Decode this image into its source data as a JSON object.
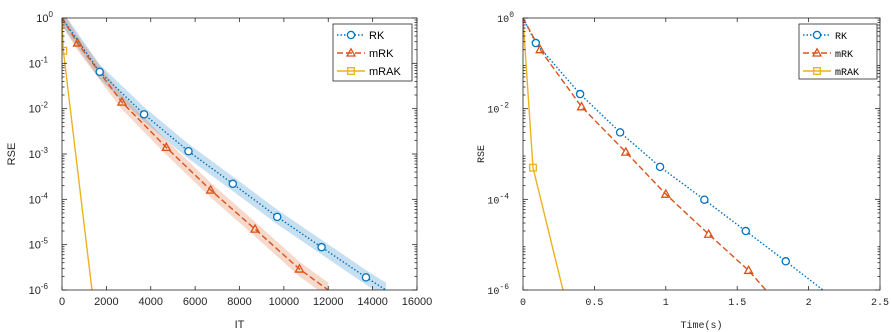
{
  "chart_data": [
    {
      "type": "line",
      "xlabel": "IT",
      "ylabel": "RSE",
      "xlim": [
        0,
        16000
      ],
      "ylim": [
        1e-06,
        1
      ],
      "yscale": "log",
      "xticks": [
        "0",
        "2000",
        "4000",
        "6000",
        "8000",
        "10000",
        "12000",
        "14000",
        "16000"
      ],
      "ytick_exponents": [
        "0",
        "-1",
        "-2",
        "-3",
        "-4",
        "-5",
        "-6"
      ],
      "ytick_base": "10",
      "legend_position": "top-right",
      "series": [
        {
          "name": "RK",
          "color": "#0072BD",
          "linestyle": "dotted",
          "marker": "circle",
          "band": true,
          "x": [
            0,
            1700,
            3700,
            5700,
            7700,
            9700,
            11700,
            13700,
            14600
          ],
          "y": [
            1,
            0.065,
            0.0075,
            0.00115,
            0.00022,
            4.1e-05,
            8.8e-06,
            1.9e-06,
            1e-06
          ]
        },
        {
          "name": "mRK",
          "color": "#D95319",
          "linestyle": "dashed",
          "marker": "triangle",
          "band": true,
          "x": [
            0,
            700,
            2700,
            4700,
            6700,
            8700,
            10700,
            12000
          ],
          "y": [
            1,
            0.28,
            0.014,
            0.0014,
            0.00016,
            2.2e-05,
            2.9e-06,
            1e-06
          ]
        },
        {
          "name": "mRAK",
          "color": "#EDB120",
          "linestyle": "solid",
          "marker": "square",
          "band": false,
          "x": [
            0,
            60,
            1350
          ],
          "y": [
            1,
            0.19,
            1e-06
          ]
        }
      ]
    },
    {
      "type": "line",
      "xlabel": "Time(s)",
      "ylabel": "RSE",
      "xlim": [
        0,
        2.5
      ],
      "ylim": [
        1e-06,
        1
      ],
      "yscale": "log",
      "xticks": [
        "0",
        "0.5",
        "1",
        "1.5",
        "2",
        "2.5"
      ],
      "ytick_exponents": [
        "0",
        "-2",
        "-4",
        "-6"
      ],
      "ytick_base": "10",
      "legend_position": "top-right",
      "series": [
        {
          "name": "RK",
          "color": "#0072BD",
          "linestyle": "dotted",
          "marker": "circle",
          "band": false,
          "x": [
            0,
            0.09,
            0.4,
            0.68,
            0.96,
            1.27,
            1.56,
            1.84,
            2.1
          ],
          "y": [
            1,
            0.28,
            0.021,
            0.003,
            0.00052,
            9.8e-05,
            2e-05,
            4.3e-06,
            1e-06
          ]
        },
        {
          "name": "mRK",
          "color": "#D95319",
          "linestyle": "dashed",
          "marker": "triangle",
          "band": false,
          "x": [
            0,
            0.12,
            0.41,
            0.72,
            1.0,
            1.3,
            1.58,
            1.7
          ],
          "y": [
            1,
            0.2,
            0.011,
            0.0011,
            0.00013,
            1.7e-05,
            2.7e-06,
            1e-06
          ]
        },
        {
          "name": "mRAK",
          "color": "#EDB120",
          "linestyle": "solid",
          "marker": "square",
          "band": false,
          "x": [
            0,
            0.07,
            0.28
          ],
          "y": [
            1,
            0.0005,
            1e-06
          ]
        }
      ]
    }
  ]
}
